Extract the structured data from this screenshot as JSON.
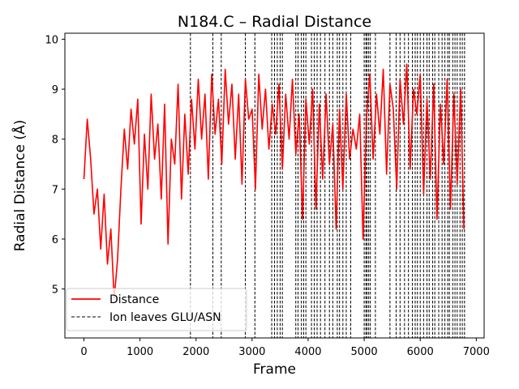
{
  "chart_data": {
    "type": "line",
    "title": "N184.C – Radial Distance",
    "xlabel": "Frame",
    "ylabel": "Radial Distance (Å)",
    "xlim": [
      -340,
      7140
    ],
    "ylim": [
      4.02,
      10.12
    ],
    "xticks": [
      0,
      1000,
      2000,
      3000,
      4000,
      5000,
      6000,
      7000
    ],
    "yticks": [
      5,
      6,
      7,
      8,
      9,
      10
    ],
    "grid": false,
    "legend_position": "lower-left",
    "colors": {
      "distance": "#ff0000",
      "events": "#000000"
    },
    "series": [
      {
        "name": "Distance",
        "style": "solid",
        "x": [
          0,
          60,
          120,
          180,
          240,
          300,
          360,
          420,
          480,
          540,
          600,
          660,
          720,
          780,
          840,
          900,
          960,
          1020,
          1080,
          1140,
          1200,
          1260,
          1320,
          1380,
          1440,
          1500,
          1560,
          1620,
          1680,
          1740,
          1800,
          1860,
          1920,
          1980,
          2040,
          2100,
          2160,
          2220,
          2280,
          2340,
          2400,
          2460,
          2520,
          2580,
          2640,
          2700,
          2760,
          2820,
          2880,
          2940,
          3000,
          3060,
          3120,
          3180,
          3240,
          3300,
          3360,
          3420,
          3480,
          3540,
          3600,
          3660,
          3720,
          3780,
          3840,
          3900,
          3960,
          4020,
          4080,
          4140,
          4200,
          4260,
          4320,
          4380,
          4440,
          4500,
          4560,
          4620,
          4680,
          4740,
          4800,
          4860,
          4920,
          4980,
          5040,
          5100,
          5160,
          5220,
          5280,
          5340,
          5400,
          5460,
          5520,
          5580,
          5640,
          5700,
          5760,
          5820,
          5880,
          5940,
          6000,
          6060,
          6120,
          6180,
          6240,
          6300,
          6360,
          6420,
          6480,
          6540,
          6600,
          6660,
          6720,
          6780
        ],
        "y": [
          7.2,
          8.4,
          7.6,
          6.5,
          7.0,
          5.8,
          6.9,
          5.5,
          6.2,
          4.8,
          5.6,
          7.0,
          8.2,
          7.4,
          8.6,
          7.9,
          8.8,
          6.3,
          8.1,
          7.0,
          8.9,
          7.6,
          8.3,
          6.8,
          8.7,
          5.9,
          8.0,
          7.5,
          9.1,
          6.8,
          8.5,
          7.3,
          8.8,
          7.8,
          9.2,
          8.0,
          8.9,
          7.2,
          9.3,
          8.1,
          8.8,
          7.5,
          9.4,
          8.3,
          9.1,
          7.6,
          8.9,
          7.1,
          9.2,
          8.4,
          8.6,
          7.0,
          9.3,
          8.2,
          9.0,
          7.8,
          8.7,
          8.1,
          9.1,
          7.4,
          8.9,
          8.0,
          9.2,
          7.7,
          8.5,
          6.4,
          8.8,
          7.9,
          9.0,
          6.6,
          8.7,
          7.2,
          8.9,
          7.5,
          8.3,
          6.2,
          8.6,
          7.0,
          8.9,
          7.6,
          8.2,
          7.8,
          8.5,
          6.0,
          8.4,
          9.3,
          7.6,
          8.9,
          8.1,
          9.4,
          7.3,
          9.1,
          8.6,
          7.0,
          9.2,
          8.3,
          9.5,
          7.4,
          9.0,
          8.5,
          9.3,
          6.9,
          8.8,
          7.2,
          9.1,
          6.4,
          8.7,
          7.5,
          9.2,
          6.6,
          8.9,
          7.1,
          9.0,
          6.2
        ]
      },
      {
        "name": "Ion leaves GLU/ASN",
        "style": "dashed",
        "x_events": [
          1900,
          2300,
          2450,
          2880,
          3050,
          3350,
          3400,
          3450,
          3500,
          3540,
          3780,
          3820,
          3880,
          3920,
          3960,
          4060,
          4110,
          4160,
          4220,
          4300,
          4380,
          4440,
          4520,
          4560,
          4620,
          4680,
          4760,
          5000,
          5030,
          5050,
          5080,
          5110,
          5200,
          5460,
          5570,
          5640,
          5720,
          5790,
          5860,
          5910,
          5950,
          6000,
          6060,
          6120,
          6160,
          6220,
          6260,
          6330,
          6390,
          6440,
          6490,
          6520,
          6580,
          6620,
          6660,
          6710,
          6750,
          6790
        ]
      }
    ]
  }
}
